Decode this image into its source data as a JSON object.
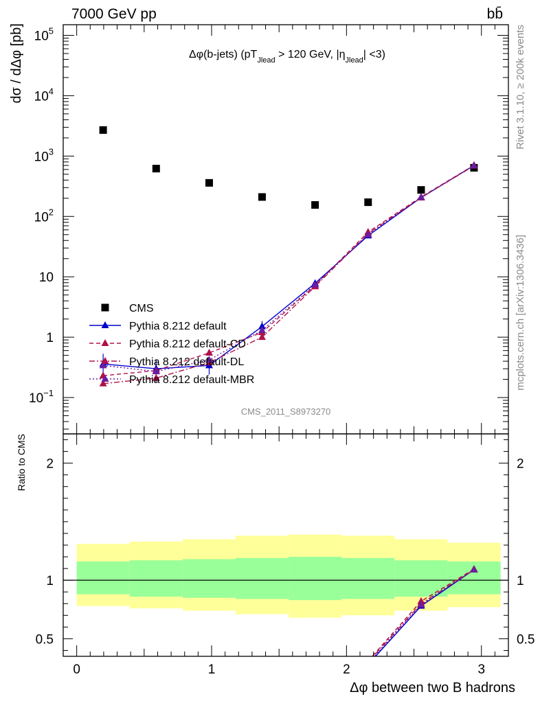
{
  "header": {
    "left": "7000 GeV pp",
    "right": "bb̄"
  },
  "side_labels": {
    "top": "Rivet 3.1.10, ≥ 200k events",
    "bottom": "mcplots.cern.ch [arXiv:1306.3436]"
  },
  "chart_data": [
    {
      "type": "scatter",
      "title": "Δφ(b-jets) (pT_Jlead > 120 GeV, |η_Jlead| <3)",
      "title_parts": {
        "a": "Δφ(b-jets) (pT",
        "a_sub": "Jlead",
        "b": " >  120 GeV, |η",
        "b_sub": "Jlead",
        "c": "| <3)"
      },
      "ylabel": "dσ / dΔφ [pb]",
      "xlabel": "",
      "yscale": "log",
      "ylim": [
        0.025,
        150000
      ],
      "xlim": [
        -0.1,
        3.2
      ],
      "yticks_log": [
        {
          "value": 100000,
          "base": "10",
          "exp": "5"
        },
        {
          "value": 10000,
          "base": "10",
          "exp": "4"
        },
        {
          "value": 1000,
          "base": "10",
          "exp": "3"
        },
        {
          "value": 100,
          "base": "10",
          "exp": "2"
        },
        {
          "value": 10,
          "label": "10"
        },
        {
          "value": 1,
          "label": "1"
        },
        {
          "value": 0.1,
          "base": "10",
          "exp": "−1"
        }
      ],
      "watermark": "CMS_2011_S8973270",
      "series": [
        {
          "name": "CMS",
          "color": "#000000",
          "marker": "square",
          "x": [
            0.196,
            0.589,
            0.982,
            1.374,
            1.767,
            2.16,
            2.553,
            2.945
          ],
          "y": [
            2700,
            620,
            360,
            210,
            155,
            172,
            275,
            640
          ]
        },
        {
          "name": "Pythia 8.212 default",
          "color": "#0000cc",
          "marker": "triangle",
          "line": "solid",
          "x": [
            0.196,
            0.589,
            0.982,
            1.374,
            1.767,
            2.16,
            2.553,
            2.945
          ],
          "y": [
            0.36,
            0.3,
            0.34,
            1.5,
            7.8,
            48,
            205,
            700
          ],
          "yerr_low": [
            0.2,
            0.18,
            0.24,
            1.2,
            7.1,
            46,
            200,
            690
          ],
          "yerr_high": [
            0.53,
            0.43,
            0.45,
            1.85,
            8.5,
            50,
            210,
            710
          ]
        },
        {
          "name": "Pythia 8.212 default-CD",
          "color": "#b0104a",
          "marker": "triangle",
          "line": "dashed",
          "x": [
            0.196,
            0.589,
            0.982,
            1.374,
            1.767,
            2.16,
            2.553,
            2.945
          ],
          "y": [
            0.23,
            0.28,
            0.55,
            1.2,
            7.2,
            55,
            210,
            705
          ]
        },
        {
          "name": "Pythia 8.212 default-DL",
          "color": "#b0104a",
          "marker": "triangle",
          "line": "dashdot",
          "x": [
            0.196,
            0.589,
            0.982,
            1.374,
            1.767,
            2.16,
            2.553,
            2.945
          ],
          "y": [
            0.17,
            0.21,
            0.38,
            1.0,
            6.9,
            52,
            205,
            690
          ]
        },
        {
          "name": "Pythia 8.212 default-MBR",
          "color": "#6a1ea0",
          "marker": "triangle",
          "line": "dotted",
          "x": [
            0.196,
            0.589,
            0.982,
            1.374,
            1.767,
            2.16,
            2.553,
            2.945
          ],
          "y": [
            0.34,
            0.27,
            0.42,
            1.3,
            7.4,
            50,
            208,
            695
          ]
        }
      ],
      "legend_placement": "bottom-left"
    },
    {
      "type": "line",
      "ylabel": "Ratio to CMS",
      "xlabel": "Δφ between two B hadrons",
      "ylim": [
        0.35,
        2.25
      ],
      "xlim": [
        -0.1,
        3.2
      ],
      "yticks": [
        0.5,
        1,
        2
      ],
      "xticks": [
        0,
        1,
        2,
        3
      ],
      "reference_line": 1,
      "bands": {
        "bin_edges": [
          0.0,
          0.393,
          0.785,
          1.178,
          1.571,
          1.963,
          2.356,
          2.749,
          3.142
        ],
        "outer_color": "#ffff99",
        "inner_color": "#99ff99",
        "outer_low": [
          0.78,
          0.76,
          0.74,
          0.71,
          0.68,
          0.7,
          0.74,
          0.77
        ],
        "outer_high": [
          1.31,
          1.33,
          1.35,
          1.38,
          1.39,
          1.38,
          1.35,
          1.32
        ],
        "inner_low": [
          0.88,
          0.86,
          0.85,
          0.84,
          0.83,
          0.84,
          0.86,
          0.88
        ],
        "inner_high": [
          1.16,
          1.17,
          1.18,
          1.19,
          1.2,
          1.19,
          1.17,
          1.16
        ]
      },
      "series": [
        {
          "name": "Pythia 8.212 default",
          "color": "#0000cc",
          "line": "solid",
          "x": [
            2.16,
            2.553,
            2.945
          ],
          "y": [
            0.28,
            0.78,
            1.09
          ]
        },
        {
          "name": "Pythia 8.212 default-CD",
          "color": "#b0104a",
          "line": "dashed",
          "x": [
            2.16,
            2.553,
            2.945
          ],
          "y": [
            0.31,
            0.82,
            1.095
          ]
        },
        {
          "name": "Pythia 8.212 default-DL",
          "color": "#b0104a",
          "line": "dashdot",
          "x": [
            2.16,
            2.553,
            2.945
          ],
          "y": [
            0.3,
            0.8,
            1.09
          ]
        },
        {
          "name": "Pythia 8.212 default-MBR",
          "color": "#6a1ea0",
          "line": "dotted",
          "x": [
            2.16,
            2.553,
            2.945
          ],
          "y": [
            0.29,
            0.79,
            1.09
          ]
        }
      ]
    }
  ]
}
